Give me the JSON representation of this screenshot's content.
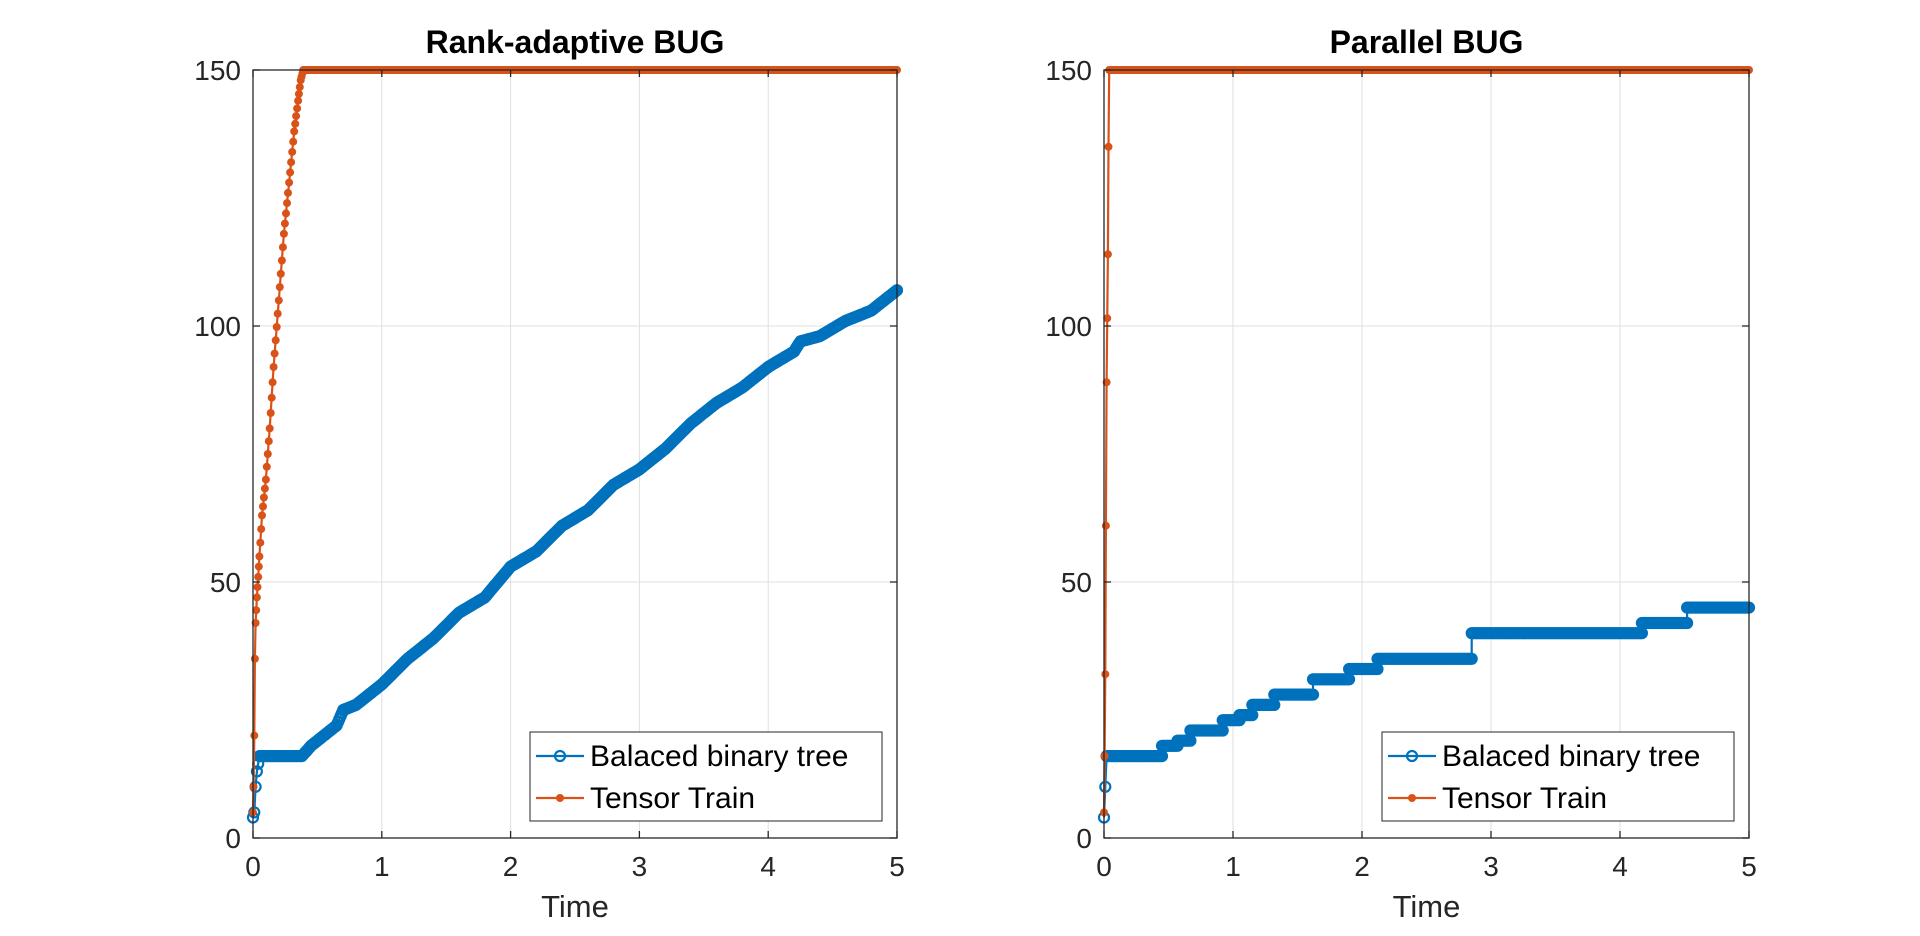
{
  "colors": {
    "balanced": "#0072BD",
    "tensor_train": "#D95319",
    "axis": "#262626",
    "grid": "#dfdfdf"
  },
  "chart_data": [
    {
      "type": "line",
      "title": "Rank-adaptive BUG",
      "xlabel": "Time",
      "ylabel": "",
      "xlim": [
        0,
        5
      ],
      "ylim": [
        0,
        150
      ],
      "xticks": [
        "0",
        "1",
        "2",
        "3",
        "4",
        "5"
      ],
      "yticks": [
        "0",
        "50",
        "100",
        "150"
      ],
      "grid": true,
      "legend_position": "bottom-right",
      "series": [
        {
          "name": "Balaced binary tree",
          "color": "#0072BD",
          "marker": "open-circle",
          "x": [
            0,
            0.01,
            0.02,
            0.03,
            0.05,
            0.1,
            0.2,
            0.3,
            0.38,
            0.45,
            0.55,
            0.65,
            0.7,
            0.8,
            0.9,
            1.0,
            1.2,
            1.4,
            1.6,
            1.8,
            2.0,
            2.2,
            2.4,
            2.6,
            2.8,
            3.0,
            3.2,
            3.4,
            3.6,
            3.8,
            4.0,
            4.2,
            4.25,
            4.4,
            4.6,
            4.8,
            5.0
          ],
          "y": [
            4,
            5,
            10,
            13,
            16,
            16,
            16,
            16,
            16,
            18,
            20,
            22,
            25,
            26,
            28,
            30,
            35,
            39,
            44,
            47,
            53,
            56,
            61,
            64,
            69,
            72,
            76,
            81,
            85,
            88,
            92,
            95,
            97,
            98,
            101,
            103,
            107
          ]
        },
        {
          "name": "Tensor Train",
          "color": "#D95319",
          "marker": "filled-dot",
          "x": [
            0,
            0.005,
            0.01,
            0.015,
            0.02,
            0.03,
            0.04,
            0.05,
            0.07,
            0.1,
            0.13,
            0.16,
            0.2,
            0.24,
            0.28,
            0.32,
            0.35,
            0.37,
            0.39,
            0.4,
            0.5,
            1.0,
            1.5,
            2.0,
            2.5,
            3.0,
            3.5,
            4.0,
            4.5,
            5.0
          ],
          "y": [
            5,
            10,
            20,
            35,
            42,
            47,
            51,
            55,
            63,
            70,
            80,
            92,
            105,
            118,
            128,
            138,
            144,
            148,
            150,
            150,
            150,
            150,
            150,
            150,
            150,
            150,
            150,
            150,
            150,
            150
          ]
        }
      ]
    },
    {
      "type": "line",
      "title": "Parallel BUG",
      "xlabel": "Time",
      "ylabel": "",
      "xlim": [
        0,
        5
      ],
      "ylim": [
        0,
        150
      ],
      "xticks": [
        "0",
        "1",
        "2",
        "3",
        "4",
        "5"
      ],
      "yticks": [
        "0",
        "50",
        "100",
        "150"
      ],
      "grid": true,
      "legend_position": "bottom-right",
      "series": [
        {
          "name": "Balaced binary tree",
          "color": "#0072BD",
          "marker": "open-circle",
          "x": [
            0,
            0.01,
            0.02,
            0.45,
            0.45,
            0.57,
            0.57,
            0.67,
            0.67,
            0.92,
            0.92,
            1.05,
            1.05,
            1.15,
            1.15,
            1.32,
            1.32,
            1.62,
            1.62,
            1.9,
            1.9,
            2.12,
            2.12,
            2.85,
            2.85,
            4.17,
            4.17,
            4.52,
            4.52,
            5.0
          ],
          "y": [
            4,
            10,
            16,
            16,
            18,
            18,
            19,
            19,
            21,
            21,
            23,
            23,
            24,
            24,
            26,
            26,
            28,
            28,
            31,
            31,
            33,
            33,
            35,
            35,
            40,
            40,
            42,
            42,
            45,
            45
          ]
        },
        {
          "name": "Tensor Train",
          "color": "#D95319",
          "marker": "filled-dot",
          "x": [
            0,
            0.005,
            0.01,
            0.015,
            0.02,
            0.03,
            0.035,
            0.04,
            0.06,
            0.1,
            0.5,
            1.0,
            1.5,
            2.0,
            2.5,
            3.0,
            3.5,
            4.0,
            4.5,
            5.0
          ],
          "y": [
            5,
            16,
            32,
            61,
            89,
            114,
            135,
            150,
            150,
            150,
            150,
            150,
            150,
            150,
            150,
            150,
            150,
            150,
            150,
            150
          ]
        }
      ]
    }
  ]
}
